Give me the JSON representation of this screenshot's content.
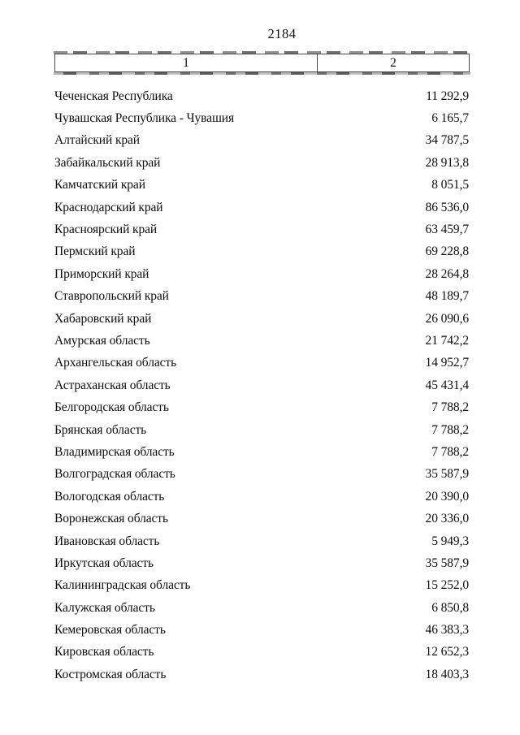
{
  "page": {
    "number": "2184"
  },
  "table": {
    "header": {
      "col1": "1",
      "col2": "2"
    },
    "rows": [
      {
        "region": "Чеченская Республика",
        "value": "11 292,9"
      },
      {
        "region": "Чувашская Республика - Чувашия",
        "value": "6 165,7"
      },
      {
        "region": "Алтайский край",
        "value": "34 787,5"
      },
      {
        "region": "Забайкальский край",
        "value": "28 913,8"
      },
      {
        "region": "Камчатский край",
        "value": "8 051,5"
      },
      {
        "region": "Краснодарский край",
        "value": "86 536,0"
      },
      {
        "region": "Красноярский край",
        "value": "63 459,7"
      },
      {
        "region": "Пермский край",
        "value": "69 228,8"
      },
      {
        "region": "Приморский край",
        "value": "28 264,8"
      },
      {
        "region": "Ставропольский край",
        "value": "48 189,7"
      },
      {
        "region": "Хабаровский край",
        "value": "26 090,6"
      },
      {
        "region": "Амурская область",
        "value": "21 742,2"
      },
      {
        "region": "Архангельская область",
        "value": "14 952,7"
      },
      {
        "region": "Астраханская область",
        "value": "45 431,4"
      },
      {
        "region": "Белгородская область",
        "value": "7 788,2"
      },
      {
        "region": "Брянская область",
        "value": "7 788,2"
      },
      {
        "region": "Владимирская область",
        "value": "7 788,2"
      },
      {
        "region": "Волгоградская область",
        "value": "35 587,9"
      },
      {
        "region": "Вологодская область",
        "value": "20 390,0"
      },
      {
        "region": "Воронежская область",
        "value": "20 336,0"
      },
      {
        "region": "Ивановская область",
        "value": "5 949,3"
      },
      {
        "region": "Иркутская область",
        "value": "35 587,9"
      },
      {
        "region": "Калининградская область",
        "value": "15 252,0"
      },
      {
        "region": "Калужская область",
        "value": "6 850,8"
      },
      {
        "region": "Кемеровская область",
        "value": "46 383,3"
      },
      {
        "region": "Кировская область",
        "value": "12 652,3"
      },
      {
        "region": "Костромская область",
        "value": "18 403,3"
      }
    ]
  }
}
